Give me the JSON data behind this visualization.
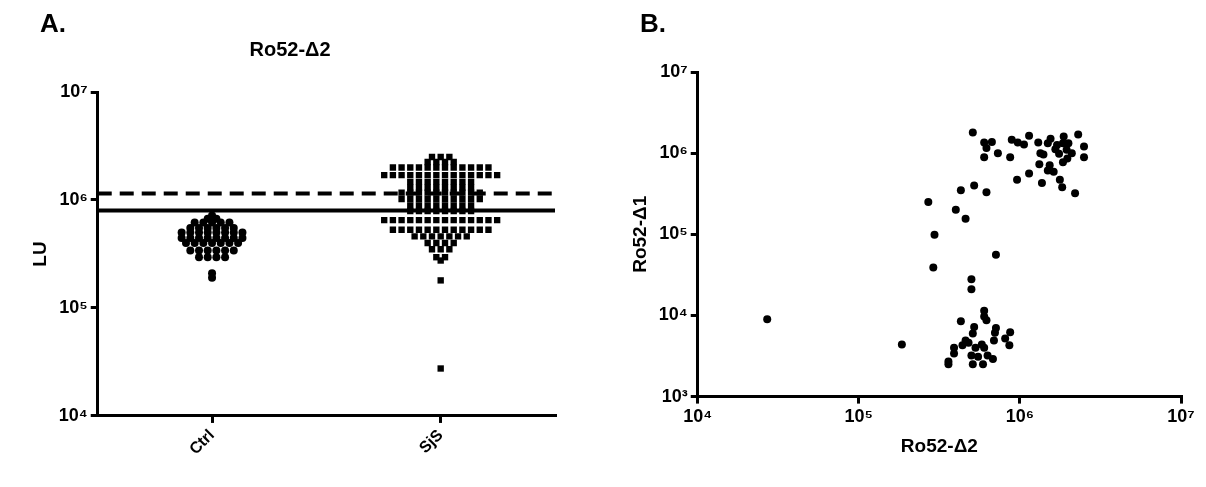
{
  "chart_data": [
    {
      "type": "scatter",
      "title": "Ro52-Δ2",
      "ylabel": "LU",
      "annotations": [
        "A."
      ],
      "categories": [
        "Ctrl",
        "SjS"
      ],
      "log": "y",
      "ylim": [
        10000,
        10000000
      ],
      "yticks": [
        {
          "value": 10000,
          "label": "10⁴"
        },
        {
          "value": 100000,
          "label": "10⁵"
        },
        {
          "value": 1000000,
          "label": "10⁶"
        },
        {
          "value": 10000000,
          "label": "10⁷"
        }
      ],
      "grid": false,
      "legend": false,
      "ref_lines": [
        {
          "axis": "y",
          "value": 800000,
          "label": null,
          "color": "#000000",
          "line_style": "solid"
        },
        {
          "axis": "y",
          "value": 1150000,
          "label": null,
          "color": "#000000",
          "line_style": "dashed"
        }
      ],
      "series": [
        {
          "color": "#000000",
          "marker": "circle",
          "x": [
            "Ctrl",
            "Ctrl",
            "Ctrl",
            "Ctrl",
            "Ctrl",
            "Ctrl",
            "Ctrl",
            "Ctrl",
            "Ctrl",
            "Ctrl",
            "Ctrl",
            "Ctrl",
            "Ctrl",
            "Ctrl",
            "Ctrl",
            "Ctrl",
            "Ctrl",
            "Ctrl",
            "Ctrl",
            "Ctrl",
            "Ctrl",
            "Ctrl",
            "Ctrl",
            "Ctrl",
            "Ctrl",
            "Ctrl",
            "Ctrl",
            "Ctrl",
            "Ctrl",
            "Ctrl",
            "Ctrl",
            "Ctrl",
            "Ctrl",
            "Ctrl",
            "Ctrl",
            "Ctrl",
            "Ctrl",
            "Ctrl",
            "Ctrl",
            "Ctrl",
            "Ctrl",
            "Ctrl",
            "Ctrl",
            "Ctrl",
            "Ctrl",
            "Ctrl",
            "Ctrl",
            "Ctrl",
            "Ctrl"
          ],
          "values": [
            720000,
            670000,
            670000,
            620000,
            620000,
            620000,
            620000,
            620000,
            550000,
            550000,
            550000,
            550000,
            550000,
            550000,
            500000,
            500000,
            500000,
            500000,
            500000,
            500000,
            500000,
            500000,
            445000,
            445000,
            445000,
            445000,
            445000,
            445000,
            445000,
            445000,
            400000,
            400000,
            400000,
            400000,
            400000,
            400000,
            400000,
            340000,
            340000,
            340000,
            340000,
            340000,
            340000,
            295000,
            295000,
            295000,
            295000,
            210000,
            190000
          ]
        },
        {
          "color": "#000000",
          "marker": "square",
          "x": [
            "SjS",
            "SjS",
            "SjS",
            "SjS",
            "SjS",
            "SjS",
            "SjS",
            "SjS",
            "SjS",
            "SjS",
            "SjS",
            "SjS",
            "SjS",
            "SjS",
            "SjS",
            "SjS",
            "SjS",
            "SjS",
            "SjS",
            "SjS",
            "SjS",
            "SjS",
            "SjS",
            "SjS",
            "SjS",
            "SjS",
            "SjS",
            "SjS",
            "SjS",
            "SjS",
            "SjS",
            "SjS",
            "SjS",
            "SjS",
            "SjS",
            "SjS",
            "SjS",
            "SjS",
            "SjS",
            "SjS",
            "SjS",
            "SjS",
            "SjS",
            "SjS",
            "SjS",
            "SjS",
            "SjS",
            "SjS",
            "SjS",
            "SjS",
            "SjS",
            "SjS",
            "SjS",
            "SjS",
            "SjS",
            "SjS",
            "SjS",
            "SjS",
            "SjS",
            "SjS",
            "SjS",
            "SjS",
            "SjS",
            "SjS",
            "SjS",
            "SjS",
            "SjS",
            "SjS",
            "SjS",
            "SjS",
            "SjS",
            "SjS",
            "SjS",
            "SjS",
            "SjS",
            "SjS",
            "SjS",
            "SjS",
            "SjS",
            "SjS",
            "SjS",
            "SjS",
            "SjS",
            "SjS",
            "SjS",
            "SjS",
            "SjS",
            "SjS",
            "SjS",
            "SjS",
            "SjS",
            "SjS",
            "SjS",
            "SjS",
            "SjS",
            "SjS",
            "SjS",
            "SjS",
            "SjS",
            "SjS",
            "SjS",
            "SjS",
            "SjS",
            "SjS",
            "SjS",
            "SjS",
            "SjS",
            "SjS",
            "SjS",
            "SjS",
            "SjS",
            "SjS",
            "SjS",
            "SjS",
            "SjS",
            "SjS",
            "SjS",
            "SjS",
            "SjS",
            "SjS",
            "SjS",
            "SjS",
            "SjS",
            "SjS",
            "SjS",
            "SjS",
            "SjS",
            "SjS",
            "SjS",
            "SjS"
          ],
          "values": [
            2500000,
            2500000,
            2500000,
            2250000,
            2250000,
            2250000,
            2250000,
            2000000,
            2000000,
            2000000,
            2000000,
            2000000,
            2000000,
            2000000,
            2000000,
            2000000,
            2000000,
            2000000,
            2000000,
            1700000,
            1700000,
            1700000,
            1700000,
            1700000,
            1700000,
            1700000,
            1700000,
            1700000,
            1700000,
            1700000,
            1700000,
            1700000,
            1700000,
            1470000,
            1470000,
            1470000,
            1470000,
            1470000,
            1470000,
            1470000,
            1470000,
            1300000,
            1300000,
            1300000,
            1300000,
            1300000,
            1300000,
            1300000,
            1300000,
            1170000,
            1170000,
            1170000,
            1170000,
            1170000,
            1170000,
            1170000,
            1170000,
            1170000,
            1170000,
            1020000,
            1020000,
            1020000,
            1020000,
            1020000,
            1020000,
            1020000,
            1020000,
            1020000,
            1020000,
            890000,
            890000,
            890000,
            890000,
            890000,
            890000,
            890000,
            890000,
            790000,
            790000,
            790000,
            790000,
            790000,
            790000,
            790000,
            790000,
            650000,
            650000,
            650000,
            650000,
            650000,
            650000,
            650000,
            650000,
            650000,
            650000,
            650000,
            650000,
            650000,
            650000,
            530000,
            530000,
            530000,
            530000,
            530000,
            530000,
            530000,
            530000,
            530000,
            530000,
            530000,
            530000,
            460000,
            460000,
            460000,
            460000,
            460000,
            460000,
            460000,
            400000,
            400000,
            400000,
            400000,
            350000,
            350000,
            350000,
            295000,
            295000,
            275000,
            180000,
            27500
          ]
        }
      ]
    },
    {
      "type": "scatter",
      "xlabel": "Ro52-Δ2",
      "ylabel": "Ro52-Δ1",
      "annotations": [
        "B."
      ],
      "log": "xy",
      "xlim": [
        10000,
        10000000
      ],
      "ylim": [
        1000,
        10000000
      ],
      "xticks": [
        {
          "value": 10000,
          "label": "10⁴"
        },
        {
          "value": 100000,
          "label": "10⁵"
        },
        {
          "value": 1000000,
          "label": "10⁶"
        },
        {
          "value": 10000000,
          "label": "10⁷"
        }
      ],
      "yticks": [
        {
          "value": 1000,
          "label": "10³"
        },
        {
          "value": 10000,
          "label": "10⁴"
        },
        {
          "value": 100000,
          "label": "10⁵"
        },
        {
          "value": 1000000,
          "label": "10⁶"
        },
        {
          "value": 10000000,
          "label": "10⁷"
        }
      ],
      "grid": false,
      "legend": false,
      "marker": "circle",
      "series": [
        {
          "color": "#000000",
          "x": [
            27000,
            185000,
            360000,
            360000,
            390000,
            390000,
            430000,
            440000,
            460000,
            480000,
            500000,
            510000,
            510000,
            520000,
            530000,
            550000,
            580000,
            590000,
            600000,
            600000,
            620000,
            600000,
            630000,
            680000,
            690000,
            700000,
            710000,
            810000,
            860000,
            870000,
            500000,
            500000,
            710000,
            290000,
            295000,
            270000,
            400000,
            460000,
            430000,
            520000,
            620000,
            510000,
            600000,
            670000,
            620000,
            600000,
            730000,
            870000,
            890000,
            970000,
            1060000,
            1140000,
            960000,
            1140000,
            1300000,
            1340000,
            1320000,
            1370000,
            1490000,
            1530000,
            1490000,
            1550000,
            1620000,
            1660000,
            1750000,
            1770000,
            1830000,
            1850000,
            1870000,
            1850000,
            1950000,
            1970000,
            2000000,
            2100000,
            2200000,
            2300000,
            2500000,
            2500000,
            1700000,
            1400000
          ],
          "values": [
            9000,
            4400,
            2700,
            2500,
            4000,
            3400,
            8500,
            4300,
            4900,
            4600,
            3200,
            2500,
            6000,
            7200,
            4000,
            3100,
            4400,
            2500,
            11400,
            9700,
            8700,
            4000,
            3200,
            2900,
            4900,
            6100,
            7000,
            5200,
            4300,
            6200,
            28000,
            21000,
            56000,
            39000,
            99000,
            250000,
            200000,
            155000,
            350000,
            400000,
            330000,
            1800000,
            1350000,
            1370000,
            1160000,
            890000,
            1000000,
            890000,
            1460000,
            1350000,
            1280000,
            1640000,
            470000,
            560000,
            1350000,
            1000000,
            730000,
            430000,
            1320000,
            710000,
            610000,
            1500000,
            590000,
            1120000,
            980000,
            470000,
            380000,
            1320000,
            1600000,
            770000,
            1100000,
            860000,
            1320000,
            1000000,
            320000,
            1700000,
            1210000,
            890000,
            1260000,
            960000
          ]
        }
      ]
    }
  ]
}
